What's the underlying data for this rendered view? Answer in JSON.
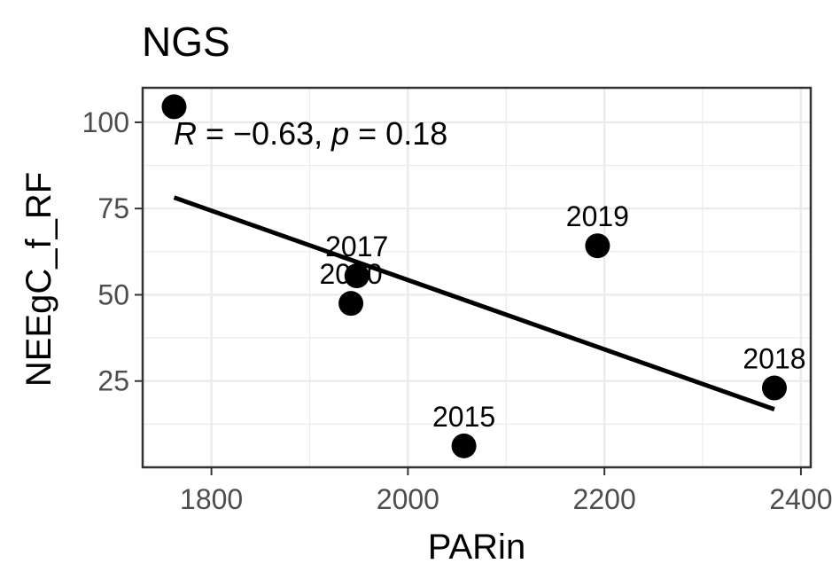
{
  "chart_data": {
    "type": "scatter",
    "title": "NGS",
    "xlabel": "PARin",
    "ylabel": "NEEgC_f_RF",
    "xlim": [
      1730,
      2410
    ],
    "ylim": [
      0,
      110
    ],
    "x_ticks": [
      1800,
      2000,
      2200,
      2400
    ],
    "y_ticks": [
      25,
      50,
      75,
      100
    ],
    "grid": true,
    "legend": "none",
    "points": [
      {
        "label": "",
        "x": 1762,
        "y": 104.5
      },
      {
        "label": "2017",
        "x": 1948,
        "y": 55.5
      },
      {
        "label": "2020",
        "x": 1942,
        "y": 47.5
      },
      {
        "label": "2015",
        "x": 2057,
        "y": 6.2
      },
      {
        "label": "2019",
        "x": 2193,
        "y": 64.2
      },
      {
        "label": "2018",
        "x": 2373,
        "y": 23.0
      }
    ],
    "regression_line": {
      "x": [
        1762,
        2373
      ],
      "y": [
        78.2,
        16.8
      ]
    },
    "annotation": {
      "r_symbol": "R",
      "r_value": " = −0.63, ",
      "p_symbol": "p",
      "p_value": " = 0.18"
    },
    "colors": {
      "points": "#000000",
      "line": "#000000",
      "panel_border": "#333333",
      "grid": "#ebebeb"
    }
  }
}
